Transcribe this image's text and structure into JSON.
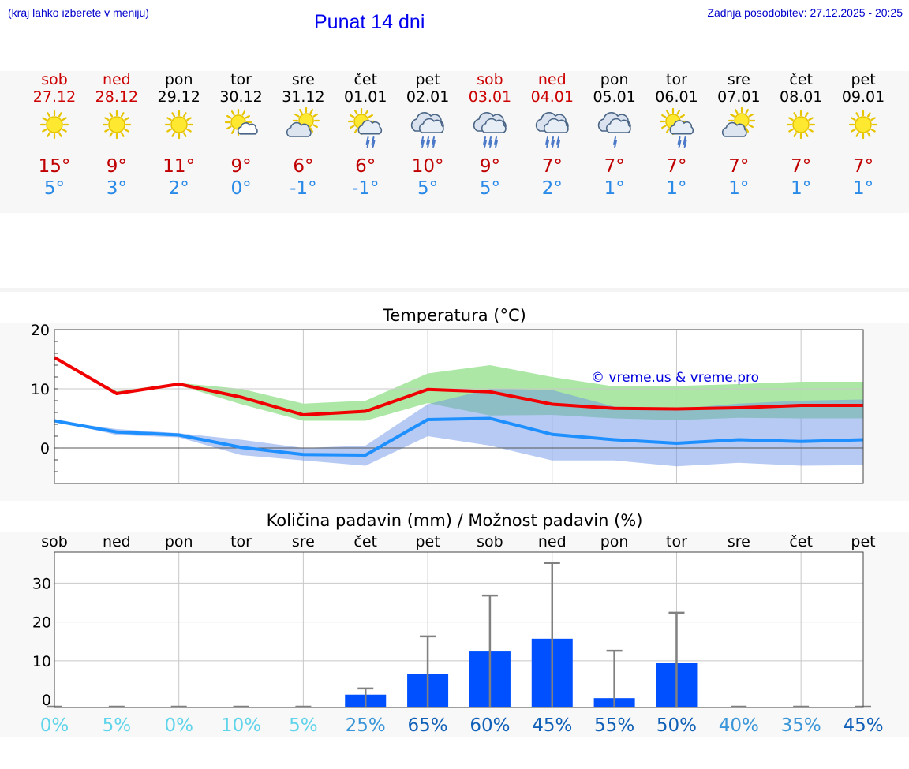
{
  "header": {
    "hint": "(kraj lahko izberete v meniju)",
    "title": "Punat 14 dni",
    "updated": "Zadnja posodobitev: 27.12.2025 - 20:25"
  },
  "days": [
    {
      "day": "sob",
      "date": "27.12",
      "weekend": true,
      "icon": "sun-icon",
      "tmax": "15°",
      "tmin": "5°"
    },
    {
      "day": "ned",
      "date": "28.12",
      "weekend": true,
      "icon": "sun-icon",
      "tmax": "9°",
      "tmin": "3°"
    },
    {
      "day": "pon",
      "date": "29.12",
      "weekend": false,
      "icon": "sun-icon",
      "tmax": "11°",
      "tmin": "2°"
    },
    {
      "day": "tor",
      "date": "30.12",
      "weekend": false,
      "icon": "sun-small-cloud-icon",
      "tmax": "9°",
      "tmin": "0°"
    },
    {
      "day": "sre",
      "date": "31.12",
      "weekend": false,
      "icon": "sun-behind-cloud-icon",
      "tmax": "6°",
      "tmin": "-1°"
    },
    {
      "day": "čet",
      "date": "01.01",
      "weekend": false,
      "icon": "sun-cloud-rain-icon",
      "tmax": "6°",
      "tmin": "-1°"
    },
    {
      "day": "pet",
      "date": "02.01",
      "weekend": false,
      "icon": "cloud-rain-icon",
      "tmax": "10°",
      "tmin": "5°"
    },
    {
      "day": "sob",
      "date": "03.01",
      "weekend": true,
      "icon": "cloud-rain-icon",
      "tmax": "9°",
      "tmin": "5°"
    },
    {
      "day": "ned",
      "date": "04.01",
      "weekend": true,
      "icon": "cloud-rain-icon",
      "tmax": "7°",
      "tmin": "2°"
    },
    {
      "day": "pon",
      "date": "05.01",
      "weekend": false,
      "icon": "cloud-light-rain-icon",
      "tmax": "7°",
      "tmin": "1°"
    },
    {
      "day": "tor",
      "date": "06.01",
      "weekend": false,
      "icon": "sun-cloud-rain-icon",
      "tmax": "7°",
      "tmin": "1°"
    },
    {
      "day": "sre",
      "date": "07.01",
      "weekend": false,
      "icon": "sun-behind-cloud-icon",
      "tmax": "7°",
      "tmin": "1°"
    },
    {
      "day": "čet",
      "date": "08.01",
      "weekend": false,
      "icon": "sun-icon",
      "tmax": "7°",
      "tmin": "1°"
    },
    {
      "day": "pet",
      "date": "09.01",
      "weekend": false,
      "icon": "sun-icon",
      "tmax": "7°",
      "tmin": "1°"
    }
  ],
  "colors": {
    "max": "#f00000",
    "min": "#1e8fff",
    "max_band": "#a8e6a0",
    "min_band": "#a9c0f2",
    "overlap": "#7bbfa0",
    "bar": "#0050ff",
    "whisker": "#808080"
  },
  "chart_data": [
    {
      "type": "line",
      "title": "Temperatura (°C)",
      "xlabel": "",
      "ylabel": "",
      "ylim": [
        -6,
        20
      ],
      "yticks": [
        0,
        10,
        20
      ],
      "watermark": "© vreme.us & vreme.pro",
      "x": [
        0,
        1,
        2,
        3,
        4,
        5,
        6,
        7,
        8,
        9,
        10,
        11,
        12,
        13
      ],
      "series": [
        {
          "name": "max",
          "values": [
            15.3,
            9.2,
            10.8,
            8.6,
            5.6,
            6.2,
            9.9,
            9.5,
            7.4,
            6.7,
            6.6,
            6.8,
            7.2,
            7.2
          ]
        },
        {
          "name": "min",
          "values": [
            4.6,
            2.7,
            2.2,
            0.1,
            -1.1,
            -1.2,
            4.8,
            5.0,
            2.3,
            1.4,
            0.8,
            1.4,
            1.1,
            1.4
          ]
        },
        {
          "name": "max_range_high",
          "values": [
            15.3,
            9.6,
            11.0,
            10.0,
            7.5,
            8.0,
            12.6,
            14.0,
            12.0,
            10.4,
            10.5,
            10.8,
            11.2,
            11.2
          ]
        },
        {
          "name": "max_range_low",
          "values": [
            15.3,
            9.0,
            10.6,
            7.4,
            4.6,
            4.6,
            7.6,
            5.5,
            5.6,
            5.0,
            4.7,
            5.1,
            5.0,
            5.0
          ]
        },
        {
          "name": "min_range_high",
          "values": [
            4.6,
            3.2,
            2.5,
            1.4,
            0.0,
            0.4,
            7.4,
            10.0,
            9.8,
            7.0,
            6.6,
            7.5,
            8.0,
            8.2
          ]
        },
        {
          "name": "min_range_low",
          "values": [
            4.6,
            2.2,
            1.8,
            -1.2,
            -2.1,
            -3.0,
            2.0,
            0.4,
            -2.1,
            -2.1,
            -3.1,
            -2.5,
            -3.0,
            -2.9
          ]
        }
      ]
    },
    {
      "type": "bar",
      "title": "Količina padavin (mm) / Možnost padavin (%)",
      "categories": [
        "sob",
        "ned",
        "pon",
        "tor",
        "sre",
        "čet",
        "pet",
        "sob",
        "ned",
        "pon",
        "tor",
        "sre",
        "čet",
        "pet"
      ],
      "ylim": [
        -2,
        38
      ],
      "yticks": [
        0,
        10,
        20,
        30
      ],
      "values": [
        0,
        0,
        0,
        0,
        0,
        1.3,
        6.7,
        12.4,
        15.7,
        0.4,
        9.4,
        0,
        0,
        0
      ],
      "whisker_high": [
        0,
        0,
        0,
        0,
        0,
        2.9,
        16.3,
        26.8,
        35.2,
        12.6,
        22.4,
        0,
        0,
        0
      ],
      "probabilities": [
        "0%",
        "5%",
        "0%",
        "10%",
        "5%",
        "25%",
        "65%",
        "60%",
        "45%",
        "55%",
        "50%",
        "40%",
        "35%",
        "45%"
      ]
    }
  ]
}
